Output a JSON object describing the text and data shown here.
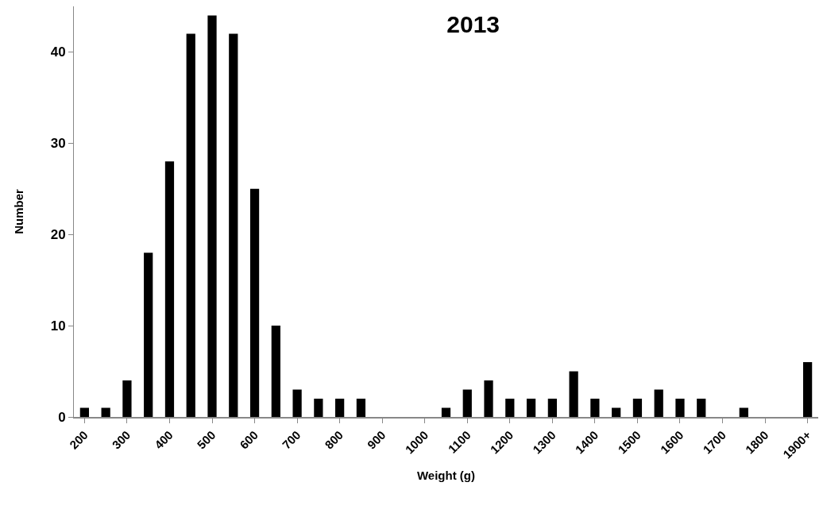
{
  "chart_data": {
    "type": "bar",
    "title": "2013",
    "xlabel": "Weight (g)",
    "ylabel": "Number",
    "categories": [
      "200",
      null,
      "300",
      null,
      "400",
      null,
      "500",
      null,
      "600",
      null,
      "700",
      null,
      "800",
      null,
      "900",
      null,
      "1000",
      null,
      "1100",
      null,
      "1200",
      null,
      "1300",
      null,
      "1400",
      null,
      "1500",
      null,
      "1600",
      null,
      "1700",
      null,
      "1800",
      null,
      "1900+"
    ],
    "values": [
      1,
      1,
      4,
      18,
      28,
      42,
      44,
      42,
      25,
      10,
      3,
      2,
      2,
      2,
      0,
      0,
      0,
      1,
      3,
      4,
      2,
      2,
      2,
      5,
      2,
      1,
      2,
      3,
      2,
      2,
      0,
      1,
      0,
      0,
      6
    ],
    "color": "#000000",
    "ylim": [
      0,
      45
    ],
    "yticks": [
      0,
      10,
      20,
      30,
      40
    ],
    "grid": false
  }
}
